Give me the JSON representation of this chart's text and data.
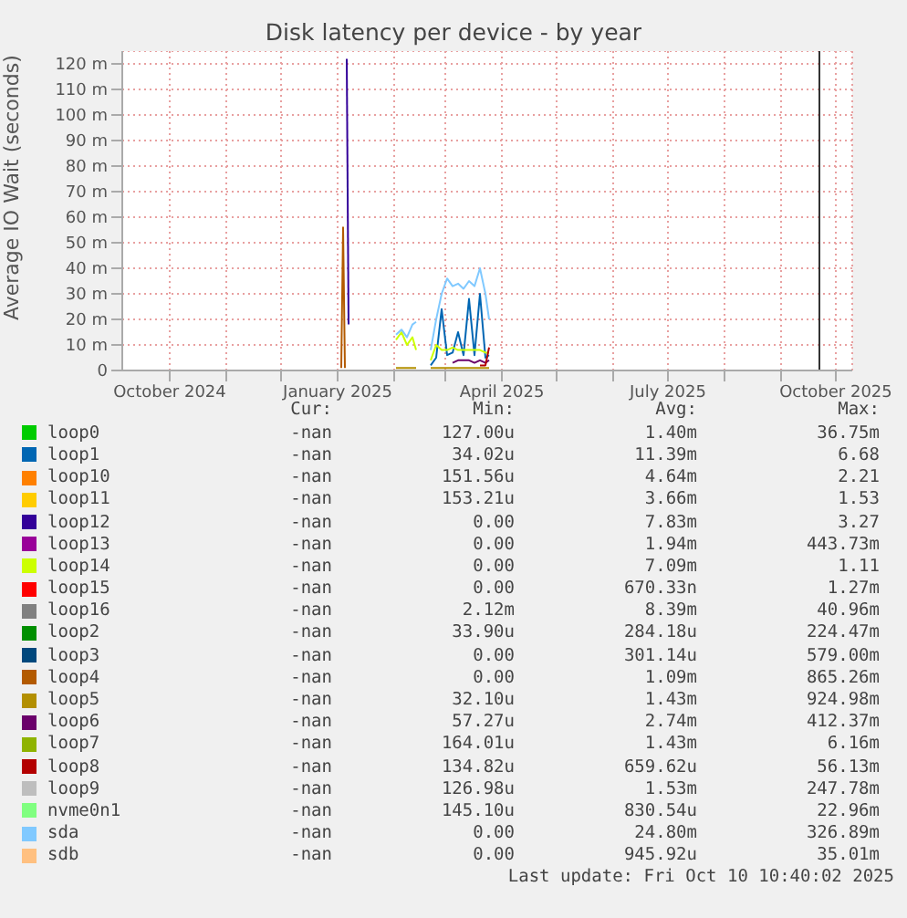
{
  "chart_data": {
    "type": "line",
    "title": "Disk latency per device - by year",
    "ylabel": "Average IO Wait (seconds)",
    "series": [
      {
        "name": "loop0",
        "color": "#00cc00"
      },
      {
        "name": "loop1",
        "color": "#0066b3",
        "x": [
          "2025-02-21",
          "2025-02-24",
          "2025-02-27",
          "2025-03-02",
          "2025-03-05",
          "2025-03-08",
          "2025-03-11",
          "2025-03-14",
          "2025-03-17",
          "2025-03-20",
          "2025-03-23",
          "2025-03-25"
        ],
        "values": [
          2,
          5,
          24,
          6,
          7,
          15,
          6,
          28,
          6,
          30,
          5,
          6
        ]
      },
      {
        "name": "loop10",
        "color": "#ff8000"
      },
      {
        "name": "loop11",
        "color": "#ffcc00"
      },
      {
        "name": "loop12",
        "color": "#330099",
        "x": [
          "2025-01-06",
          "2025-01-07"
        ],
        "values": [
          122,
          18
        ]
      },
      {
        "name": "loop13",
        "color": "#990099"
      },
      {
        "name": "loop14",
        "color": "#ccff00",
        "x": [
          "2025-02-02",
          "2025-02-05",
          "2025-02-08",
          "2025-02-11",
          "2025-02-13",
          "2025-02-17",
          "2025-02-21",
          "2025-02-24",
          "2025-02-27",
          "2025-03-02",
          "2025-03-05",
          "2025-03-08",
          "2025-03-11",
          "2025-03-14",
          "2025-03-17",
          "2025-03-20",
          "2025-03-23",
          "2025-03-25"
        ],
        "values": [
          12,
          15,
          10,
          13,
          8,
          null,
          4,
          10,
          8,
          8,
          9,
          8,
          8,
          8,
          8,
          8,
          7,
          7
        ]
      },
      {
        "name": "loop15",
        "color": "#ff0000"
      },
      {
        "name": "loop16",
        "color": "#808080"
      },
      {
        "name": "loop2",
        "color": "#008f00"
      },
      {
        "name": "loop3",
        "color": "#00487d"
      },
      {
        "name": "loop4",
        "color": "#b35a00",
        "x": [
          "2025-01-03",
          "2025-01-04",
          "2025-01-05"
        ],
        "values": [
          1,
          56,
          1
        ]
      },
      {
        "name": "loop5",
        "color": "#b38f00",
        "x": [
          "2025-02-02",
          "2025-02-13",
          "2025-02-17",
          "2025-02-21",
          "2025-03-25"
        ],
        "values": [
          1,
          1,
          null,
          1,
          1
        ]
      },
      {
        "name": "loop6",
        "color": "#6b006b",
        "x": [
          "2025-03-05",
          "2025-03-08",
          "2025-03-11",
          "2025-03-14",
          "2025-03-17",
          "2025-03-20",
          "2025-03-23",
          "2025-03-25"
        ],
        "values": [
          3,
          4,
          4,
          4,
          3,
          4,
          3,
          4
        ]
      },
      {
        "name": "loop7",
        "color": "#8fb300"
      },
      {
        "name": "loop8",
        "color": "#b30000",
        "x": [
          "2025-03-20",
          "2025-03-23",
          "2025-03-25"
        ],
        "values": [
          2,
          2,
          9
        ]
      },
      {
        "name": "loop9",
        "color": "#bebebe"
      },
      {
        "name": "nvme0n1",
        "color": "#80ff80"
      },
      {
        "name": "sda",
        "color": "#80c9ff",
        "x": [
          "2025-02-02",
          "2025-02-05",
          "2025-02-08",
          "2025-02-11",
          "2025-02-13",
          "2025-02-17",
          "2025-02-21",
          "2025-02-24",
          "2025-02-27",
          "2025-03-02",
          "2025-03-05",
          "2025-03-08",
          "2025-03-11",
          "2025-03-14",
          "2025-03-17",
          "2025-03-20",
          "2025-03-23",
          "2025-03-25"
        ],
        "values": [
          14,
          16,
          13,
          18,
          19,
          null,
          8,
          20,
          30,
          36,
          33,
          34,
          32,
          35,
          33,
          40,
          30,
          20
        ]
      },
      {
        "name": "sdb",
        "color": "#ffc080"
      }
    ],
    "xlim": [
      "2024-09-05",
      "2025-10-10"
    ],
    "xticks": [
      {
        "value": "2024-10-01",
        "label": "October 2024"
      },
      {
        "value": "2024-11-01",
        "label": null
      },
      {
        "value": "2024-12-01",
        "label": null
      },
      {
        "value": "2025-01-01",
        "label": "January 2025"
      },
      {
        "value": "2025-02-01",
        "label": null
      },
      {
        "value": "2025-03-01",
        "label": null
      },
      {
        "value": "2025-04-01",
        "label": "April 2025"
      },
      {
        "value": "2025-05-01",
        "label": null
      },
      {
        "value": "2025-06-01",
        "label": null
      },
      {
        "value": "2025-07-01",
        "label": "July 2025"
      },
      {
        "value": "2025-08-01",
        "label": null
      },
      {
        "value": "2025-09-01",
        "label": null
      },
      {
        "value": "2025-10-01",
        "label": "October 2025"
      }
    ],
    "ylim": [
      0,
      125
    ],
    "yticks": [
      {
        "value": 0,
        "label": "0"
      },
      {
        "value": 10,
        "label": "10 m"
      },
      {
        "value": 20,
        "label": "20 m"
      },
      {
        "value": 30,
        "label": "30 m"
      },
      {
        "value": 40,
        "label": "40 m"
      },
      {
        "value": 50,
        "label": "50 m"
      },
      {
        "value": 60,
        "label": "60 m"
      },
      {
        "value": 70,
        "label": "70 m"
      },
      {
        "value": 80,
        "label": "80 m"
      },
      {
        "value": 90,
        "label": "90 m"
      },
      {
        "value": 100,
        "label": "100 m"
      },
      {
        "value": 110,
        "label": "110 m"
      },
      {
        "value": 120,
        "label": "120 m"
      }
    ],
    "ref_lines": [
      {
        "axis": "x",
        "value": "2025-09-22",
        "color": "#333333"
      }
    ],
    "grid": true,
    "legend": "bottom",
    "marker": "none",
    "line_style": "solid",
    "annotations": [
      "Cur:",
      "Min:",
      "Avg:",
      "Max:",
      "-nan",
      "127.00u",
      "1.40m",
      "36.75m",
      "-nan",
      "34.02u",
      "11.39m",
      "6.68",
      "-nan",
      "151.56u",
      "4.64m",
      "2.21",
      "-nan",
      "153.21u",
      "3.66m",
      "1.53",
      "-nan",
      "0.00",
      "7.83m",
      "3.27",
      "-nan",
      "0.00",
      "1.94m",
      "443.73m",
      "-nan",
      "0.00",
      "7.09m",
      "1.11",
      "-nan",
      "0.00",
      "670.33n",
      "1.27m",
      "-nan",
      "2.12m",
      "8.39m",
      "40.96m",
      "-nan",
      "33.90u",
      "284.18u",
      "224.47m",
      "-nan",
      "0.00",
      "301.14u",
      "579.00m",
      "-nan",
      "0.00",
      "1.09m",
      "865.26m",
      "-nan",
      "32.10u",
      "1.43m",
      "924.98m",
      "-nan",
      "57.27u",
      "2.74m",
      "412.37m",
      "-nan",
      "164.01u",
      "1.43m",
      "6.16m",
      "-nan",
      "134.82u",
      "659.62u",
      "56.13m",
      "-nan",
      "126.98u",
      "1.53m",
      "247.78m",
      "-nan",
      "145.10u",
      "830.54u",
      "22.96m",
      "-nan",
      "0.00",
      "24.80m",
      "326.89m",
      "-nan",
      "0.00",
      "945.92u",
      "35.01m",
      "Last update: Fri Oct 10 10:40:02 2025"
    ]
  }
}
